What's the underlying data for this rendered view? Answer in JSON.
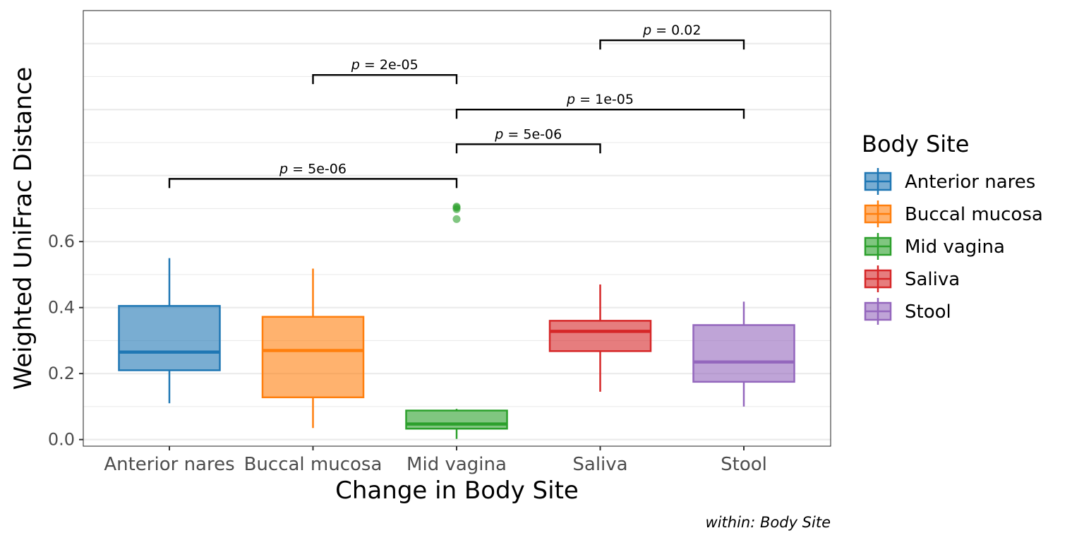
{
  "chart_data": {
    "type": "box",
    "title": "",
    "xlabel": "Change in Body Site",
    "ylabel": "Weighted UniFrac Distance",
    "caption": "within: Body Site",
    "ylim": [
      -0.02,
      1.3
    ],
    "yticks": [
      0.0,
      0.2,
      0.4,
      0.6
    ],
    "ytick_labels": [
      "0.0",
      "0.2",
      "0.4",
      "0.6"
    ],
    "grid": true,
    "legend": {
      "title": "Body Site",
      "position": "right"
    },
    "categories": [
      "Anterior nares",
      "Buccal mucosa",
      "Mid vagina",
      "Saliva",
      "Stool"
    ],
    "series": [
      {
        "name": "Anterior nares",
        "color": "#1f77b4",
        "whisker_low": 0.11,
        "q1": 0.21,
        "median": 0.265,
        "q3": 0.405,
        "whisker_high": 0.55,
        "outliers": []
      },
      {
        "name": "Buccal mucosa",
        "color": "#ff7f0e",
        "whisker_low": 0.035,
        "q1": 0.128,
        "median": 0.27,
        "q3": 0.372,
        "whisker_high": 0.518,
        "outliers": []
      },
      {
        "name": "Mid vagina",
        "color": "#2ca02c",
        "whisker_low": 0.002,
        "q1": 0.033,
        "median": 0.047,
        "q3": 0.088,
        "whisker_high": 0.093,
        "outliers": [
          0.668,
          0.698,
          0.703,
          0.706
        ]
      },
      {
        "name": "Saliva",
        "color": "#d62728",
        "whisker_low": 0.145,
        "q1": 0.268,
        "median": 0.328,
        "q3": 0.36,
        "whisker_high": 0.47,
        "outliers": []
      },
      {
        "name": "Stool",
        "color": "#9467bd",
        "whisker_low": 0.1,
        "q1": 0.175,
        "median": 0.235,
        "q3": 0.347,
        "whisker_high": 0.418,
        "outliers": []
      }
    ],
    "annotations": [
      {
        "from": "Anterior nares",
        "to": "Mid vagina",
        "y": 0.79,
        "label": "= 5e-06"
      },
      {
        "from": "Mid vagina",
        "to": "Saliva",
        "y": 0.895,
        "label": "= 5e-06"
      },
      {
        "from": "Mid vagina",
        "to": "Stool",
        "y": 1.0,
        "label": "= 1e-05"
      },
      {
        "from": "Buccal mucosa",
        "to": "Mid vagina",
        "y": 1.105,
        "label": "= 2e-05"
      },
      {
        "from": "Saliva",
        "to": "Stool",
        "y": 1.21,
        "label": "= 0.02"
      }
    ],
    "annotation_prefix": "p"
  }
}
